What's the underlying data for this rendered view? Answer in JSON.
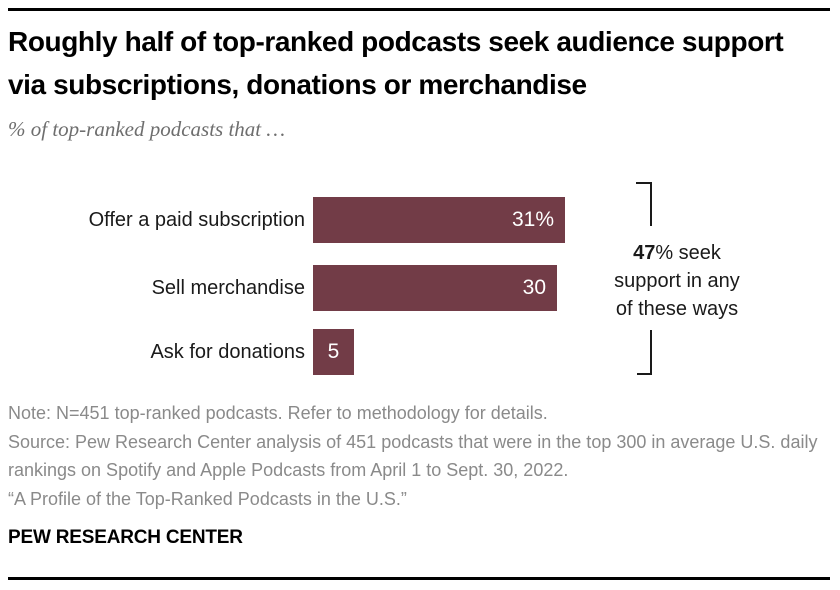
{
  "header": {
    "title": "Roughly half of top-ranked podcasts seek audience support via subscriptions, donations or merchandise",
    "subtitle": "% of top-ranked podcasts that …"
  },
  "chart_data": {
    "type": "bar",
    "orientation": "horizontal",
    "categories": [
      "Offer a paid subscription",
      "Sell merchandise",
      "Ask for donations"
    ],
    "values": [
      31,
      30,
      5
    ],
    "value_labels": [
      "31%",
      "30",
      "5"
    ],
    "xlim": [
      0,
      31
    ],
    "bar_color": "#723C47",
    "grid": "off",
    "annotation": {
      "line1_bold": "47",
      "line1_rest": "% seek",
      "line2": "support in any",
      "line3": "of these ways"
    }
  },
  "footer": {
    "note": "Note: N=451 top-ranked podcasts. Refer to methodology for details.",
    "source": "Source: Pew Research Center analysis of 451 podcasts that were in the top 300 in average U.S. daily rankings on Spotify and Apple Podcasts from April 1 to Sept. 30, 2022.",
    "quote": "“A Profile of the Top-Ranked Podcasts in the U.S.”",
    "brand": "PEW RESEARCH CENTER"
  }
}
